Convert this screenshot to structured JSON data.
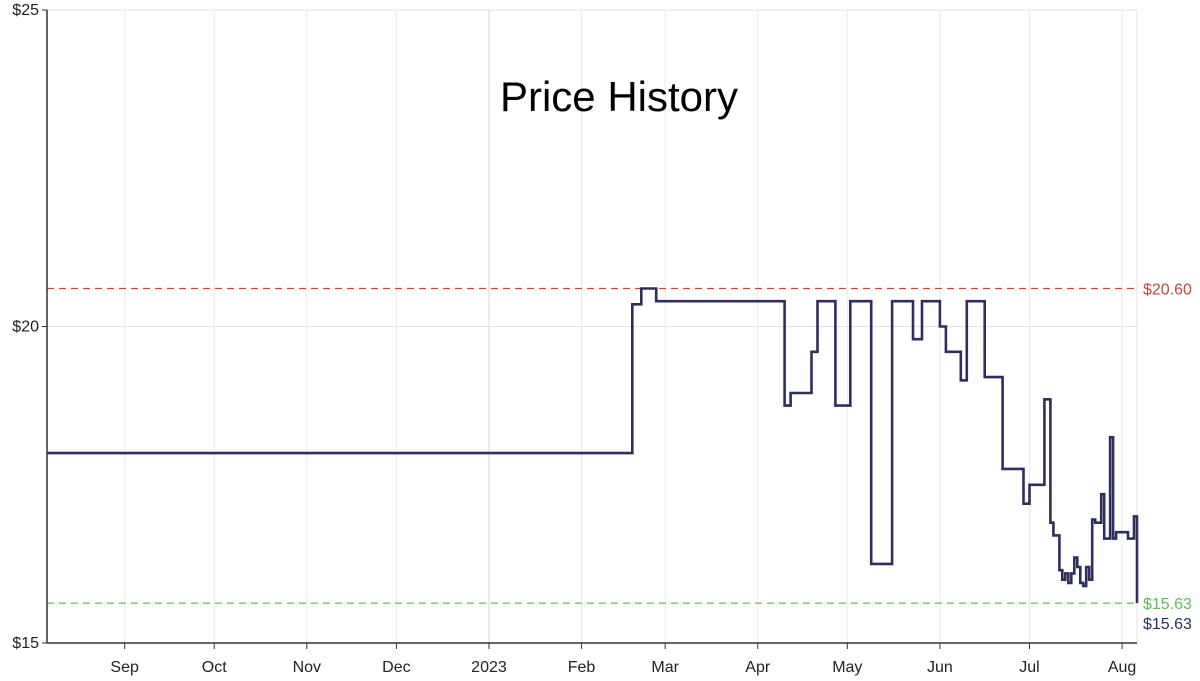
{
  "chart_data": {
    "type": "line",
    "title": "Price History",
    "xlabel": "",
    "ylabel": "",
    "ylim": [
      15,
      25
    ],
    "xlim": [
      "2022-08-06",
      "2023-08-06"
    ],
    "y_ticks": [
      {
        "value": 15,
        "label": "$15"
      },
      {
        "value": 20,
        "label": "$20"
      },
      {
        "value": 25,
        "label": "$25"
      }
    ],
    "x_ticks": [
      {
        "date": "2022-09-01",
        "label": "Sep"
      },
      {
        "date": "2022-10-01",
        "label": "Oct"
      },
      {
        "date": "2022-11-01",
        "label": "Nov"
      },
      {
        "date": "2022-12-01",
        "label": "Dec"
      },
      {
        "date": "2023-01-01",
        "label": "2023"
      },
      {
        "date": "2023-02-01",
        "label": "Feb"
      },
      {
        "date": "2023-03-01",
        "label": "Mar"
      },
      {
        "date": "2023-04-01",
        "label": "Apr"
      },
      {
        "date": "2023-05-01",
        "label": "May"
      },
      {
        "date": "2023-06-01",
        "label": "Jun"
      },
      {
        "date": "2023-07-01",
        "label": "Jul"
      },
      {
        "date": "2023-08-01",
        "label": "Aug"
      }
    ],
    "grid": true,
    "series": [
      {
        "step": true,
        "color": "#2e2f5e",
        "points": [
          [
            "2022-08-06",
            18.0
          ],
          [
            "2023-02-18",
            20.35
          ],
          [
            "2023-02-21",
            20.6
          ],
          [
            "2023-02-26",
            20.4
          ],
          [
            "2023-04-10",
            18.75
          ],
          [
            "2023-04-12",
            18.95
          ],
          [
            "2023-04-19",
            19.6
          ],
          [
            "2023-04-21",
            20.4
          ],
          [
            "2023-04-27",
            18.75
          ],
          [
            "2023-05-02",
            20.4
          ],
          [
            "2023-05-09",
            16.25
          ],
          [
            "2023-05-16",
            20.4
          ],
          [
            "2023-05-23",
            19.8
          ],
          [
            "2023-05-26",
            20.4
          ],
          [
            "2023-06-01",
            20.0
          ],
          [
            "2023-06-03",
            19.6
          ],
          [
            "2023-06-08",
            19.15
          ],
          [
            "2023-06-10",
            20.4
          ],
          [
            "2023-06-16",
            19.2
          ],
          [
            "2023-06-22",
            17.75
          ],
          [
            "2023-06-29",
            17.2
          ],
          [
            "2023-07-01",
            17.5
          ],
          [
            "2023-07-06",
            18.85
          ],
          [
            "2023-07-08",
            16.9
          ],
          [
            "2023-07-09",
            16.7
          ],
          [
            "2023-07-11",
            16.15
          ],
          [
            "2023-07-12",
            16.0
          ],
          [
            "2023-07-13",
            16.1
          ],
          [
            "2023-07-14",
            15.95
          ],
          [
            "2023-07-15",
            16.1
          ],
          [
            "2023-07-16",
            16.35
          ],
          [
            "2023-07-17",
            16.2
          ],
          [
            "2023-07-18",
            15.95
          ],
          [
            "2023-07-19",
            15.9
          ],
          [
            "2023-07-20",
            16.2
          ],
          [
            "2023-07-21",
            16.0
          ],
          [
            "2023-07-22",
            16.95
          ],
          [
            "2023-07-23",
            16.9
          ],
          [
            "2023-07-24",
            16.9
          ],
          [
            "2023-07-25",
            17.35
          ],
          [
            "2023-07-26",
            16.65
          ],
          [
            "2023-07-27",
            16.65
          ],
          [
            "2023-07-28",
            18.25
          ],
          [
            "2023-07-29",
            16.65
          ],
          [
            "2023-07-30",
            16.75
          ],
          [
            "2023-08-03",
            16.65
          ],
          [
            "2023-08-05",
            17.0
          ],
          [
            "2023-08-06",
            15.63
          ]
        ]
      }
    ],
    "reference_lines": [
      {
        "value": 20.6,
        "label": "$20.60",
        "color": "#c8453e",
        "style": "dashed"
      },
      {
        "value": 15.63,
        "label": "$15.63",
        "color": "#5bbf50",
        "style": "dashed"
      }
    ],
    "current_label": {
      "value": 15.63,
      "label": "$15.63",
      "color": "#2e2f5e"
    }
  }
}
